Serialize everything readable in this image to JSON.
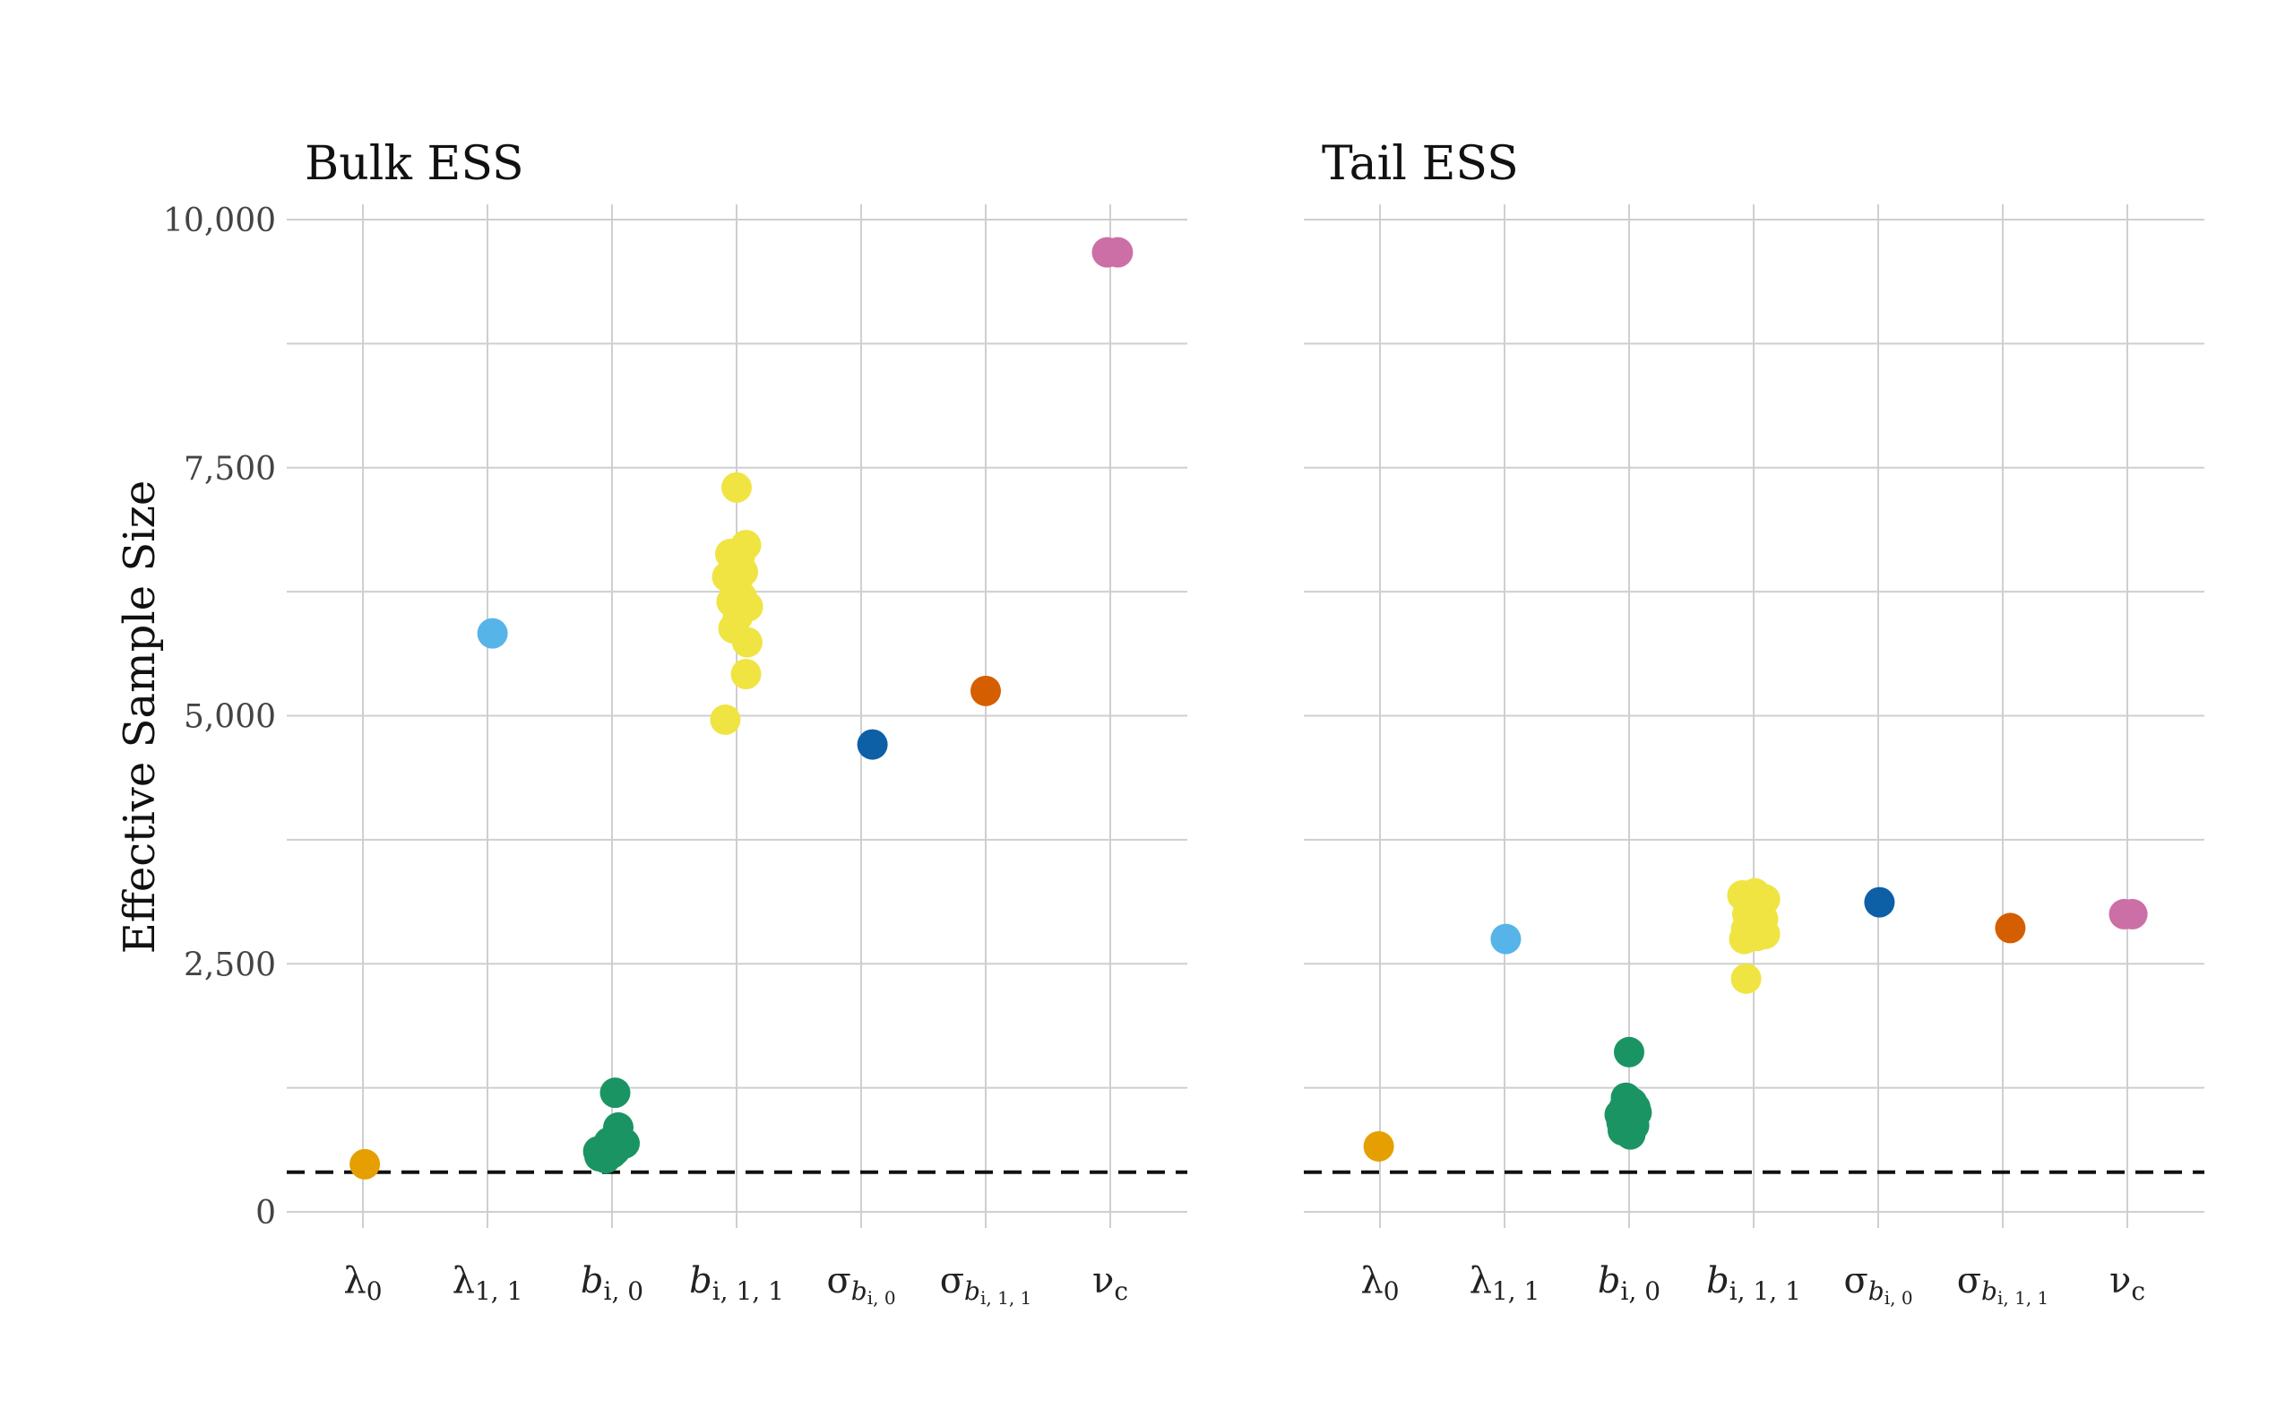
{
  "chart_data": {
    "type": "scatter",
    "ylabel": "Effective Sample Size",
    "ylim": [
      0,
      10000
    ],
    "yticks": [
      0,
      2500,
      5000,
      7500,
      10000
    ],
    "ytick_labels": [
      "0",
      "2,500",
      "5,000",
      "7,500",
      "10,000"
    ],
    "threshold": 400,
    "grid": true,
    "categories": [
      {
        "base": "λ",
        "sub": "0",
        "color": "#E69F00"
      },
      {
        "base": "λ",
        "sub": "1, 1",
        "color": "#56B4E9"
      },
      {
        "base": "b",
        "sub": "i, 0",
        "color": "#1B9463"
      },
      {
        "base": "b",
        "sub": "i, 1, 1",
        "color": "#F0E442"
      },
      {
        "base": "σ",
        "sub": "b",
        "subsub": "i, 0",
        "color": "#0D5FA6"
      },
      {
        "base": "σ",
        "sub": "b",
        "subsub": "i, 1, 1",
        "color": "#D55E00"
      },
      {
        "base": "ν",
        "sub": "c",
        "color": "#CC6FA6"
      }
    ],
    "panels": [
      {
        "title": "Bulk ESS",
        "series": [
          {
            "category": 0,
            "points": [
              [
                0.03,
                480
              ]
            ]
          },
          {
            "category": 1,
            "points": [
              [
                0.08,
                5830
              ]
            ]
          },
          {
            "category": 2,
            "points": [
              [
                0.05,
                1200
              ],
              [
                -0.2,
                560
              ],
              [
                -0.15,
                600
              ],
              [
                -0.05,
                700
              ],
              [
                0.1,
                850
              ],
              [
                0.15,
                680
              ],
              [
                0.2,
                690
              ],
              [
                -0.1,
                540
              ],
              [
                0.05,
                620
              ],
              [
                0.0,
                590
              ],
              [
                -0.22,
                610
              ],
              [
                0.12,
                730
              ]
            ]
          },
          {
            "category": 3,
            "points": [
              [
                0.0,
                7300
              ],
              [
                -0.1,
                6630
              ],
              [
                0.15,
                6720
              ],
              [
                0.05,
                6600
              ],
              [
                -0.15,
                6400
              ],
              [
                0.0,
                6300
              ],
              [
                0.08,
                6200
              ],
              [
                0.18,
                6100
              ],
              [
                0.02,
                6000
              ],
              [
                -0.05,
                5880
              ],
              [
                0.17,
                5740
              ],
              [
                0.15,
                5420
              ],
              [
                -0.18,
                4960
              ],
              [
                0.1,
                6450
              ],
              [
                -0.08,
                6150
              ]
            ]
          },
          {
            "category": 4,
            "points": [
              [
                0.18,
                4710
              ]
            ]
          },
          {
            "category": 5,
            "points": [
              [
                0.0,
                5250
              ]
            ]
          },
          {
            "category": 6,
            "points": [
              [
                -0.05,
                9670
              ],
              [
                0.12,
                9670
              ]
            ]
          }
        ]
      },
      {
        "title": "Tail ESS",
        "series": [
          {
            "category": 0,
            "points": [
              [
                -0.02,
                660
              ]
            ]
          },
          {
            "category": 1,
            "points": [
              [
                0.02,
                2750
              ]
            ]
          },
          {
            "category": 2,
            "points": [
              [
                0.0,
                1610
              ],
              [
                -0.15,
                980
              ],
              [
                -0.1,
                820
              ],
              [
                0.05,
                1100
              ],
              [
                0.1,
                1050
              ],
              [
                -0.05,
                1150
              ],
              [
                0.08,
                870
              ],
              [
                0.0,
                950
              ],
              [
                -0.12,
                900
              ],
              [
                0.12,
                1000
              ],
              [
                0.02,
                780
              ],
              [
                -0.08,
                1050
              ]
            ]
          },
          {
            "category": 3,
            "points": [
              [
                -0.18,
                3190
              ],
              [
                0.02,
                3210
              ],
              [
                0.18,
                3150
              ],
              [
                0.1,
                3050
              ],
              [
                -0.1,
                3000
              ],
              [
                0.15,
                2950
              ],
              [
                0.0,
                2900
              ],
              [
                -0.12,
                2850
              ],
              [
                0.18,
                2800
              ],
              [
                -0.15,
                2750
              ],
              [
                0.05,
                2780
              ],
              [
                -0.12,
                2350
              ],
              [
                0.08,
                3100
              ],
              [
                -0.05,
                2950
              ]
            ]
          },
          {
            "category": 4,
            "points": [
              [
                0.02,
                3120
              ]
            ]
          },
          {
            "category": 5,
            "points": [
              [
                0.12,
                2860
              ]
            ]
          },
          {
            "category": 6,
            "points": [
              [
                -0.05,
                3000
              ],
              [
                0.08,
                3000
              ]
            ]
          }
        ]
      }
    ]
  }
}
